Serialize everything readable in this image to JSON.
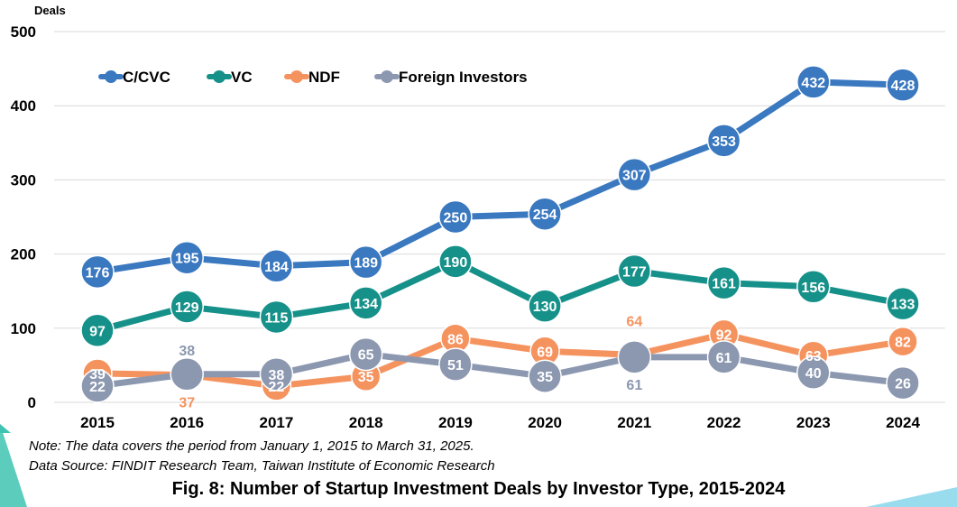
{
  "chart_data": {
    "type": "line",
    "ylabel": "Deals",
    "ylim": [
      0,
      500
    ],
    "yticks": [
      "0",
      "100",
      "200",
      "300",
      "400",
      "500"
    ],
    "categories": [
      "2015",
      "2016",
      "2017",
      "2018",
      "2019",
      "2020",
      "2021",
      "2022",
      "2023",
      "2024"
    ],
    "grid": true,
    "legend_position": "top-left",
    "series": [
      {
        "name": "C/CVC",
        "color": "#3a78c0",
        "values": [
          176,
          195,
          184,
          189,
          250,
          254,
          307,
          353,
          432,
          428
        ]
      },
      {
        "name": "VC",
        "color": "#16918a",
        "values": [
          97,
          129,
          115,
          134,
          190,
          130,
          177,
          161,
          156,
          133
        ]
      },
      {
        "name": "NDF",
        "color": "#f5935f",
        "values": [
          39,
          37,
          22,
          35,
          86,
          69,
          64,
          92,
          63,
          82
        ]
      },
      {
        "name": "Foreign Investors",
        "color": "#8c98b0",
        "values": [
          22,
          38,
          38,
          65,
          51,
          35,
          61,
          61,
          40,
          26
        ]
      }
    ]
  },
  "note": "Note: The data covers the period from January 1, 2015 to March 31, 2025.",
  "source": "Data Source: FINDIT Research Team, Taiwan Institute of Economic Research",
  "caption": "Fig. 8: Number of Startup Investment Deals by Investor Type, 2015-2024"
}
